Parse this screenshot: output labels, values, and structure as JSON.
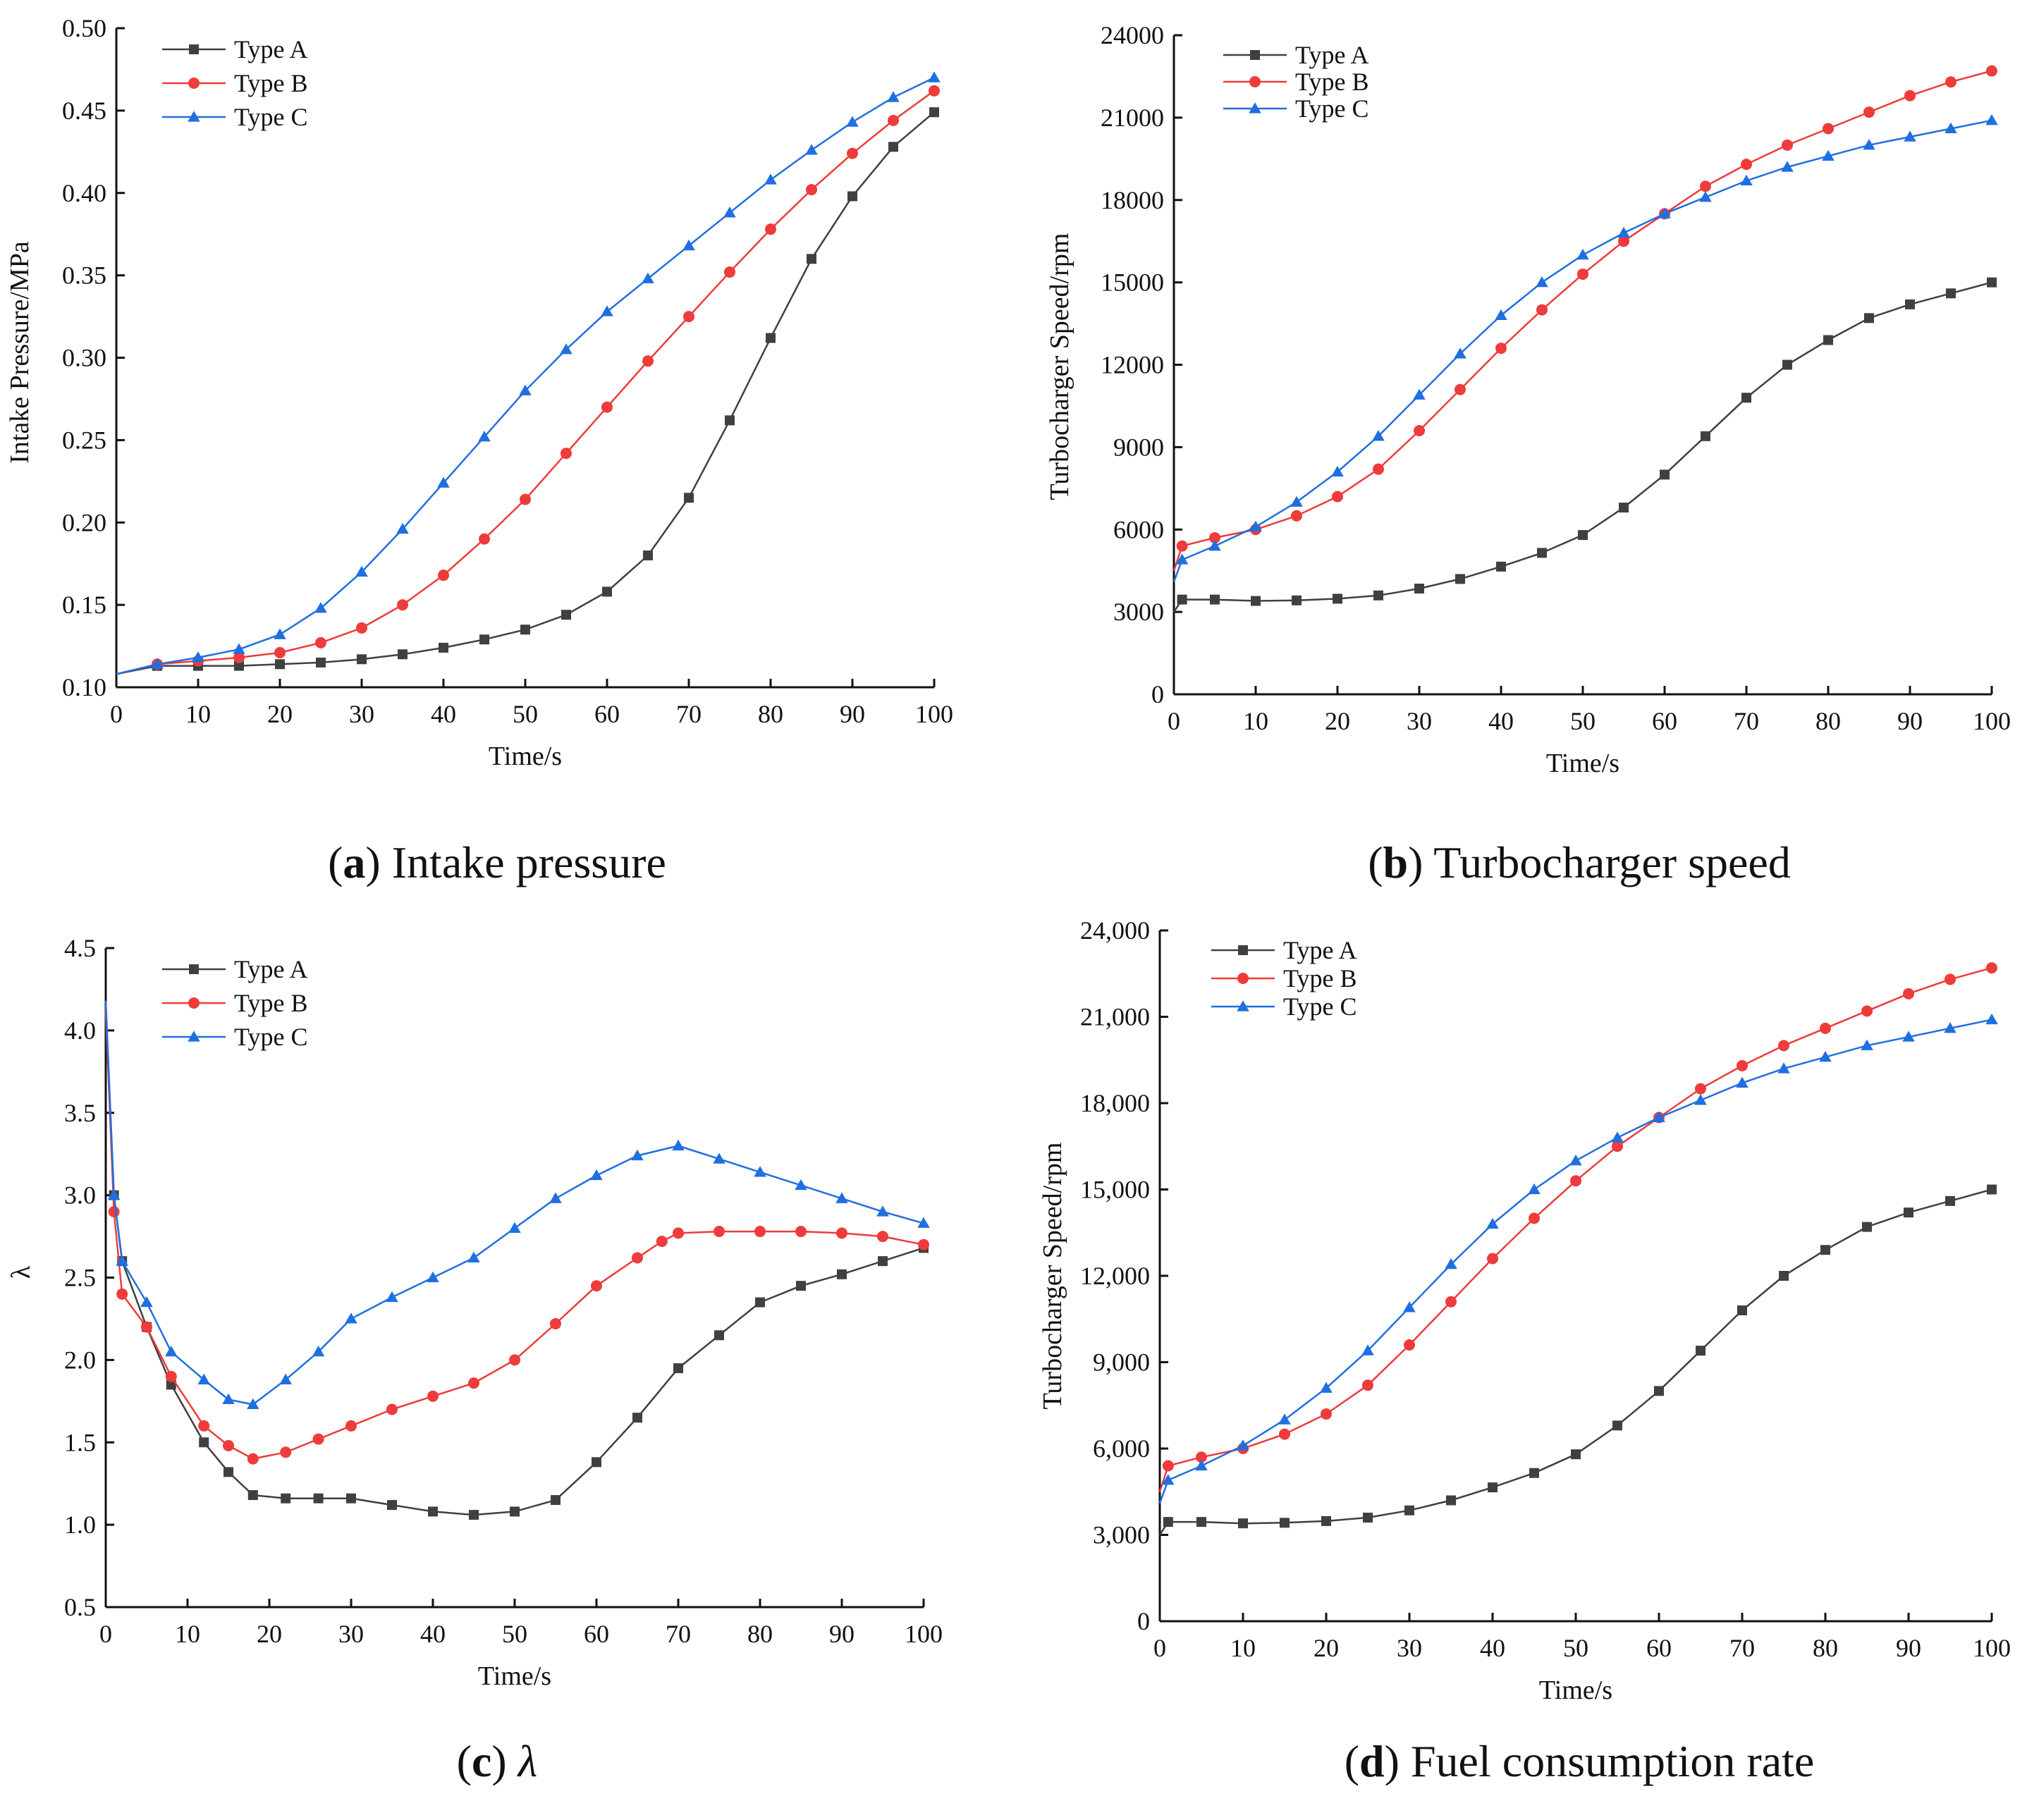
{
  "colors": {
    "type_a": "#404040",
    "type_b": "#ee3b3b",
    "type_c": "#1f6fe0"
  },
  "chart_data": [
    {
      "id": "a",
      "type": "line",
      "caption_letter": "a",
      "caption_rest": " Intake pressure",
      "xlabel": "Time/s",
      "ylabel": "Intake Pressure/MPa",
      "xlim": [
        0,
        100
      ],
      "ylim": [
        0.1,
        0.5
      ],
      "xticks": [
        0,
        10,
        20,
        30,
        40,
        50,
        60,
        70,
        80,
        90,
        100
      ],
      "xtick_labels": [
        "0",
        "10",
        "20",
        "30",
        "40",
        "50",
        "60",
        "70",
        "80",
        "90",
        "100"
      ],
      "yticks": [
        0.1,
        0.15,
        0.2,
        0.25,
        0.3,
        0.35,
        0.4,
        0.45,
        0.5
      ],
      "ytick_labels": [
        "0.10",
        "0.15",
        "0.20",
        "0.25",
        "0.30",
        "0.35",
        "0.40",
        "0.45",
        "0.50"
      ],
      "legend": "top-left",
      "series": [
        {
          "name": "Type A",
          "marker": "square",
          "color_key": "type_a",
          "x": [
            0,
            5,
            10,
            15,
            20,
            25,
            30,
            35,
            40,
            45,
            50,
            55,
            60,
            65,
            70,
            75,
            80,
            85,
            90,
            95,
            100
          ],
          "y": [
            0.108,
            0.113,
            0.113,
            0.113,
            0.114,
            0.115,
            0.117,
            0.12,
            0.124,
            0.129,
            0.135,
            0.144,
            0.158,
            0.18,
            0.215,
            0.262,
            0.312,
            0.36,
            0.398,
            0.428,
            0.449
          ]
        },
        {
          "name": "Type B",
          "marker": "circle",
          "color_key": "type_b",
          "x": [
            0,
            5,
            10,
            15,
            20,
            25,
            30,
            35,
            40,
            45,
            50,
            55,
            60,
            65,
            70,
            75,
            80,
            85,
            90,
            95,
            100
          ],
          "y": [
            0.108,
            0.114,
            0.116,
            0.118,
            0.121,
            0.127,
            0.136,
            0.15,
            0.168,
            0.19,
            0.214,
            0.242,
            0.27,
            0.298,
            0.325,
            0.352,
            0.378,
            0.402,
            0.424,
            0.444,
            0.462
          ]
        },
        {
          "name": "Type C",
          "marker": "triangle",
          "color_key": "type_c",
          "x": [
            0,
            5,
            10,
            15,
            20,
            25,
            30,
            35,
            40,
            45,
            50,
            55,
            60,
            65,
            70,
            75,
            80,
            85,
            90,
            95,
            100
          ],
          "y": [
            0.108,
            0.114,
            0.118,
            0.123,
            0.132,
            0.148,
            0.17,
            0.196,
            0.224,
            0.252,
            0.28,
            0.305,
            0.328,
            0.348,
            0.368,
            0.388,
            0.408,
            0.426,
            0.443,
            0.458,
            0.47
          ]
        }
      ]
    },
    {
      "id": "b",
      "type": "line",
      "caption_letter": "b",
      "caption_rest": " Turbocharger speed",
      "xlabel": "Time/s",
      "ylabel": "Turbocharger Speed/rpm",
      "xlim": [
        0,
        100
      ],
      "ylim": [
        0,
        24000
      ],
      "xticks": [
        0,
        10,
        20,
        30,
        40,
        50,
        60,
        70,
        80,
        90,
        100
      ],
      "xtick_labels": [
        "0",
        "10",
        "20",
        "30",
        "40",
        "50",
        "60",
        "70",
        "80",
        "90",
        "100"
      ],
      "yticks": [
        0,
        3000,
        6000,
        9000,
        12000,
        15000,
        18000,
        21000,
        24000
      ],
      "ytick_labels": [
        "0",
        "3000",
        "6000",
        "9000",
        "12000",
        "15000",
        "18000",
        "21000",
        "24000"
      ],
      "legend": "top-left",
      "series": [
        {
          "name": "Type A",
          "marker": "square",
          "color_key": "type_a",
          "x": [
            0,
            1,
            5,
            10,
            15,
            20,
            25,
            30,
            35,
            40,
            45,
            50,
            55,
            60,
            65,
            70,
            75,
            80,
            85,
            90,
            95,
            100
          ],
          "y": [
            3000,
            3450,
            3450,
            3400,
            3420,
            3480,
            3600,
            3850,
            4200,
            4650,
            5150,
            5800,
            6800,
            8000,
            9400,
            10800,
            12000,
            12900,
            13700,
            14200,
            14600,
            15000
          ]
        },
        {
          "name": "Type B",
          "marker": "circle",
          "color_key": "type_b",
          "x": [
            0,
            1,
            5,
            10,
            15,
            20,
            25,
            30,
            35,
            40,
            45,
            50,
            55,
            60,
            65,
            70,
            75,
            80,
            85,
            90,
            95,
            100
          ],
          "y": [
            4500,
            5400,
            5700,
            6000,
            6500,
            7200,
            8200,
            9600,
            11100,
            12600,
            14000,
            15300,
            16500,
            17500,
            18500,
            19300,
            20000,
            20600,
            21200,
            21800,
            22300,
            22700
          ]
        },
        {
          "name": "Type C",
          "marker": "triangle",
          "color_key": "type_c",
          "x": [
            0,
            1,
            5,
            10,
            15,
            20,
            25,
            30,
            35,
            40,
            45,
            50,
            55,
            60,
            65,
            70,
            75,
            80,
            85,
            90,
            95,
            100
          ],
          "y": [
            4100,
            4900,
            5400,
            6100,
            7000,
            8100,
            9400,
            10900,
            12400,
            13800,
            15000,
            16000,
            16800,
            17500,
            18100,
            18700,
            19200,
            19600,
            20000,
            20300,
            20600,
            20900
          ]
        }
      ]
    },
    {
      "id": "c",
      "type": "line",
      "caption_letter": "c",
      "caption_rest": " λ",
      "xlabel": "Time/s",
      "ylabel": "λ",
      "xlim": [
        0,
        100
      ],
      "ylim": [
        0.5,
        4.5
      ],
      "xticks": [
        0,
        10,
        20,
        30,
        40,
        50,
        60,
        70,
        80,
        90,
        100
      ],
      "xtick_labels": [
        "0",
        "10",
        "20",
        "30",
        "40",
        "50",
        "60",
        "70",
        "80",
        "90",
        "100"
      ],
      "yticks": [
        0.5,
        1.0,
        1.5,
        2.0,
        2.5,
        3.0,
        3.5,
        4.0,
        4.5
      ],
      "ytick_labels": [
        "0.5",
        "1.0",
        "1.5",
        "2.0",
        "2.5",
        "3.0",
        "3.5",
        "4.0",
        "4.5"
      ],
      "legend": "top-center",
      "series": [
        {
          "name": "Type A",
          "marker": "square",
          "color_key": "type_a",
          "x": [
            0,
            1,
            2,
            5,
            8,
            12,
            15,
            18,
            22,
            26,
            30,
            35,
            40,
            45,
            50,
            55,
            60,
            65,
            70,
            75,
            80,
            85,
            90,
            95,
            100
          ],
          "y": [
            4.15,
            3.0,
            2.6,
            2.2,
            1.85,
            1.5,
            1.32,
            1.18,
            1.16,
            1.16,
            1.16,
            1.12,
            1.08,
            1.06,
            1.08,
            1.15,
            1.38,
            1.65,
            1.95,
            2.15,
            2.35,
            2.45,
            2.52,
            2.6,
            2.68
          ]
        },
        {
          "name": "Type B",
          "marker": "circle",
          "color_key": "type_b",
          "x": [
            0,
            1,
            2,
            5,
            8,
            12,
            15,
            18,
            22,
            26,
            30,
            35,
            40,
            45,
            50,
            55,
            60,
            65,
            68,
            70,
            75,
            80,
            85,
            90,
            95,
            100
          ],
          "y": [
            4.12,
            2.9,
            2.4,
            2.2,
            1.9,
            1.6,
            1.48,
            1.4,
            1.44,
            1.52,
            1.6,
            1.7,
            1.78,
            1.86,
            2.0,
            2.22,
            2.45,
            2.62,
            2.72,
            2.77,
            2.78,
            2.78,
            2.78,
            2.77,
            2.75,
            2.7
          ]
        },
        {
          "name": "Type C",
          "marker": "triangle",
          "color_key": "type_c",
          "x": [
            0,
            1,
            2,
            5,
            8,
            12,
            15,
            18,
            22,
            26,
            30,
            35,
            40,
            45,
            50,
            55,
            60,
            65,
            70,
            75,
            80,
            85,
            90,
            95,
            100
          ],
          "y": [
            4.18,
            3.0,
            2.6,
            2.35,
            2.05,
            1.88,
            1.76,
            1.73,
            1.88,
            2.05,
            2.25,
            2.38,
            2.5,
            2.62,
            2.8,
            2.98,
            3.12,
            3.24,
            3.3,
            3.22,
            3.14,
            3.06,
            2.98,
            2.9,
            2.83
          ]
        }
      ]
    },
    {
      "id": "d",
      "type": "line",
      "caption_letter": "d",
      "caption_rest": " Fuel consumption rate",
      "xlabel": "Time/s",
      "ylabel": "Turbocharger Speed/rpm",
      "xlim": [
        0,
        100
      ],
      "ylim": [
        0,
        24000
      ],
      "xticks": [
        0,
        10,
        20,
        30,
        40,
        50,
        60,
        70,
        80,
        90,
        100
      ],
      "xtick_labels": [
        "0",
        "10",
        "20",
        "30",
        "40",
        "50",
        "60",
        "70",
        "80",
        "90",
        "100"
      ],
      "yticks": [
        0,
        3000,
        6000,
        9000,
        12000,
        15000,
        18000,
        21000,
        24000
      ],
      "ytick_labels": [
        "0",
        "3,000",
        "6,000",
        "9,000",
        "12,000",
        "15,000",
        "18,000",
        "21,000",
        "24,000"
      ],
      "legend": "top-left",
      "series": [
        {
          "name": "Type A",
          "marker": "square",
          "color_key": "type_a",
          "x": [
            0,
            1,
            5,
            10,
            15,
            20,
            25,
            30,
            35,
            40,
            45,
            50,
            55,
            60,
            65,
            70,
            75,
            80,
            85,
            90,
            95,
            100
          ],
          "y": [
            3000,
            3450,
            3450,
            3400,
            3420,
            3480,
            3600,
            3850,
            4200,
            4650,
            5150,
            5800,
            6800,
            8000,
            9400,
            10800,
            12000,
            12900,
            13700,
            14200,
            14600,
            15000
          ]
        },
        {
          "name": "Type B",
          "marker": "circle",
          "color_key": "type_b",
          "x": [
            0,
            1,
            5,
            10,
            15,
            20,
            25,
            30,
            35,
            40,
            45,
            50,
            55,
            60,
            65,
            70,
            75,
            80,
            85,
            90,
            95,
            100
          ],
          "y": [
            4500,
            5400,
            5700,
            6000,
            6500,
            7200,
            8200,
            9600,
            11100,
            12600,
            14000,
            15300,
            16500,
            17500,
            18500,
            19300,
            20000,
            20600,
            21200,
            21800,
            22300,
            22700
          ]
        },
        {
          "name": "Type C",
          "marker": "triangle",
          "color_key": "type_c",
          "x": [
            0,
            1,
            5,
            10,
            15,
            20,
            25,
            30,
            35,
            40,
            45,
            50,
            55,
            60,
            65,
            70,
            75,
            80,
            85,
            90,
            95,
            100
          ],
          "y": [
            4100,
            4900,
            5400,
            6100,
            7000,
            8100,
            9400,
            10900,
            12400,
            13800,
            15000,
            16000,
            16800,
            17500,
            18100,
            18700,
            19200,
            19600,
            20000,
            20300,
            20600,
            20900
          ]
        }
      ]
    }
  ]
}
